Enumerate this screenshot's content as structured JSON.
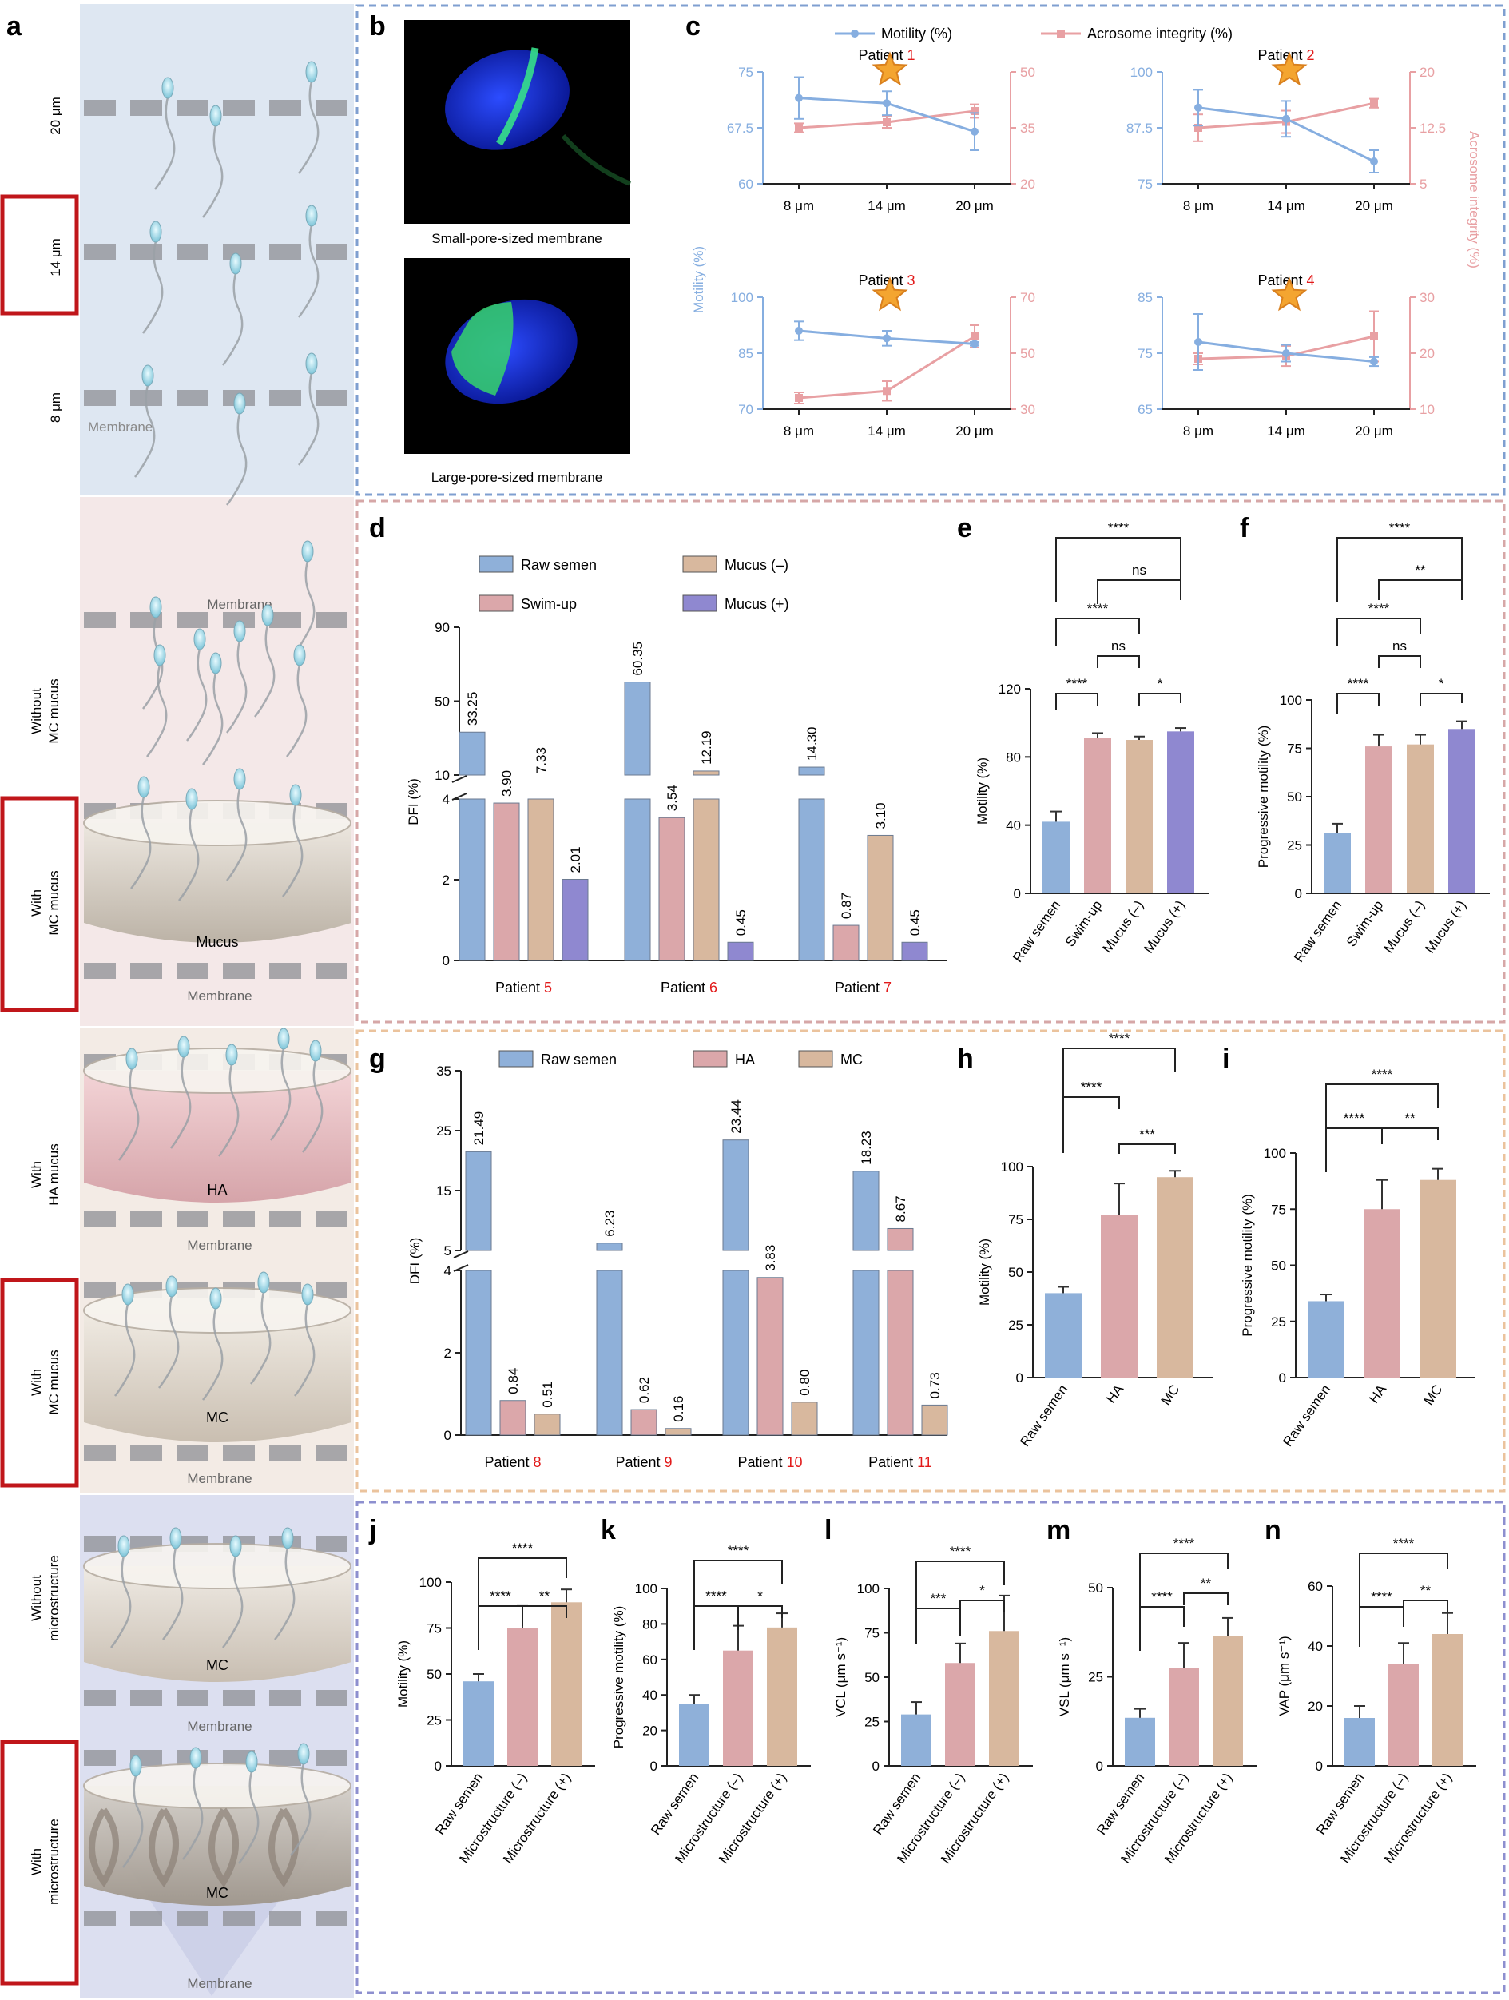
{
  "colors": {
    "blue": "#8fb0d9",
    "pink": "#dba7aa",
    "tan": "#d8b89e",
    "purple": "#8f88d0",
    "motility_line": "#86aee0",
    "acrosome_line": "#e8a0a3",
    "red": "#e21a1a",
    "bg_blue": "#dee7f2",
    "bg_pink": "#f4e8e8",
    "bg_peach": "#f3ebe5",
    "bg_lav": "#dcdff0",
    "frame_blue": "#7f9fd0",
    "frame_pink": "#d6a7a7",
    "frame_peach": "#ebc39d",
    "frame_lav": "#8d8fcf"
  },
  "panel_letters": [
    "a",
    "b",
    "c",
    "d",
    "e",
    "f",
    "g",
    "h",
    "i",
    "j",
    "k",
    "l",
    "m",
    "n"
  ],
  "panel_a": {
    "pore_labels": [
      "20 μm",
      "14 μm",
      "8 μm"
    ],
    "membrane_label": "Membrane",
    "side_labels": [
      "Without\nMC mucus",
      "With\nMC mucus",
      "With\nHA mucus",
      "With\nMC mucus",
      "Without\nmicrostructure",
      "With\nmicrostructure"
    ],
    "mucus_labels": [
      "Mucus",
      "HA",
      "MC",
      "MC",
      "MC"
    ],
    "membrane_labels": [
      "Membrane",
      "Membrane",
      "Membrane",
      "Membrane",
      "Membrane",
      "Membrane"
    ]
  },
  "panel_b": {
    "captions": [
      "Small-pore-sized membrane",
      "Large-pore-sized membrane"
    ]
  },
  "chart_data": [
    {
      "id": "c",
      "type": "line",
      "legend": [
        "Motility (%)",
        "Acrosome integrity (%)"
      ],
      "ylabel_left": "Motility (%)",
      "ylabel_right": "Acrosome integrity (%)",
      "categories": [
        "8 μm",
        "14 μm",
        "20 μm"
      ],
      "patients": [
        {
          "prefix": "Patient ",
          "num": "1",
          "left_ticks": [
            "60",
            "67.5",
            "75"
          ],
          "left_range": [
            60,
            75
          ],
          "right_ticks": [
            "20",
            "35",
            "50"
          ],
          "right_range": [
            20,
            50
          ],
          "motility": [
            71.5,
            70.8,
            67.0
          ],
          "motility_err": [
            2.8,
            1.6,
            2.5
          ],
          "acrosome": [
            35.0,
            36.5,
            39.5
          ],
          "acrosome_err": [
            1.2,
            1.5,
            1.8
          ]
        },
        {
          "prefix": "Patient ",
          "num": "2",
          "left_ticks": [
            "75",
            "87.5",
            "100"
          ],
          "left_range": [
            75,
            100
          ],
          "right_ticks": [
            "5",
            "12.5",
            "20"
          ],
          "right_range": [
            5,
            20
          ],
          "motility": [
            92.0,
            89.5,
            80.0
          ],
          "motility_err": [
            4.0,
            4.0,
            2.5
          ],
          "acrosome": [
            12.5,
            13.3,
            15.8
          ],
          "acrosome_err": [
            1.8,
            1.5,
            0.6
          ]
        },
        {
          "prefix": "Patient ",
          "num": "3",
          "left_ticks": [
            "70",
            "85",
            "100"
          ],
          "left_range": [
            70,
            100
          ],
          "right_ticks": [
            "30",
            "50",
            "70"
          ],
          "right_range": [
            30,
            70
          ],
          "motility": [
            91.0,
            89.0,
            87.5
          ],
          "motility_err": [
            2.5,
            2.0,
            0.5
          ],
          "acrosome": [
            34.0,
            36.5,
            56.0
          ],
          "acrosome_err": [
            2.0,
            3.5,
            4.0
          ]
        },
        {
          "prefix": "Patient ",
          "num": "4",
          "left_ticks": [
            "65",
            "75",
            "85"
          ],
          "left_range": [
            65,
            85
          ],
          "right_ticks": [
            "10",
            "20",
            "30"
          ],
          "right_range": [
            10,
            30
          ],
          "motility": [
            77.0,
            75.0,
            73.5
          ],
          "motility_err": [
            5.0,
            1.5,
            0.8
          ],
          "acrosome": [
            19.0,
            19.5,
            23.0
          ],
          "acrosome_err": [
            1.0,
            1.8,
            4.5
          ]
        }
      ]
    },
    {
      "id": "d",
      "type": "bar",
      "ylabel": "DFI (%)",
      "legend": [
        "Raw semen",
        "Swim-up",
        "Mucus (–)",
        "Mucus (+)"
      ],
      "upper_ticks": [
        "10",
        "50",
        "90"
      ],
      "lower_ticks": [
        "0",
        "2",
        "4"
      ],
      "groups": [
        {
          "prefix": "Patient ",
          "num": "5",
          "values": [
            33.25,
            3.9,
            7.33,
            2.01
          ],
          "labels": [
            "33.25",
            "3.90",
            "7.33",
            "2.01"
          ]
        },
        {
          "prefix": "Patient ",
          "num": "6",
          "values": [
            60.35,
            3.54,
            12.19,
            0.45
          ],
          "labels": [
            "60.35",
            "3.54",
            "12.19",
            "0.45"
          ]
        },
        {
          "prefix": "Patient ",
          "num": "7",
          "values": [
            14.3,
            0.87,
            3.1,
            0.45
          ],
          "labels": [
            "14.30",
            "0.87",
            "3.10",
            "0.45"
          ]
        }
      ]
    },
    {
      "id": "e",
      "type": "bar",
      "ylabel": "Motility (%)",
      "ylim": [
        0,
        120
      ],
      "ticks": [
        "0",
        "40",
        "80",
        "120"
      ],
      "categories": [
        "Raw semen",
        "Swim-up",
        "Mucus (–)",
        "Mucus (+)"
      ],
      "values": [
        42,
        91,
        90,
        95
      ],
      "errors": [
        6,
        3,
        2,
        2
      ],
      "sig": [
        {
          "a": 0,
          "b": 1,
          "label": "****"
        },
        {
          "a": 1,
          "b": 2,
          "label": "ns"
        },
        {
          "a": 2,
          "b": 3,
          "label": "*"
        },
        {
          "a": 0,
          "b": 2,
          "label": "****"
        },
        {
          "a": 1,
          "b": 3,
          "label": "ns"
        },
        {
          "a": 0,
          "b": 3,
          "label": "****"
        }
      ]
    },
    {
      "id": "f",
      "type": "bar",
      "ylabel": "Progressive motility (%)",
      "ylim": [
        0,
        100
      ],
      "ticks": [
        "0",
        "25",
        "50",
        "75",
        "100"
      ],
      "categories": [
        "Raw semen",
        "Swim-up",
        "Mucus (–)",
        "Mucus (+)"
      ],
      "values": [
        31,
        76,
        77,
        85
      ],
      "errors": [
        5,
        6,
        5,
        4
      ],
      "sig": [
        {
          "a": 0,
          "b": 1,
          "label": "****"
        },
        {
          "a": 1,
          "b": 2,
          "label": "ns"
        },
        {
          "a": 2,
          "b": 3,
          "label": "*"
        },
        {
          "a": 0,
          "b": 2,
          "label": "****"
        },
        {
          "a": 1,
          "b": 3,
          "label": "**"
        },
        {
          "a": 0,
          "b": 3,
          "label": "****"
        }
      ]
    },
    {
      "id": "g",
      "type": "bar",
      "ylabel": "DFI (%)",
      "legend": [
        "Raw semen",
        "HA",
        "MC"
      ],
      "upper_ticks": [
        "5",
        "15",
        "25",
        "35"
      ],
      "lower_ticks": [
        "0",
        "2",
        "4"
      ],
      "groups": [
        {
          "prefix": "Patient ",
          "num": "8",
          "values": [
            21.49,
            0.84,
            0.51
          ],
          "labels": [
            "21.49",
            "0.84",
            "0.51"
          ]
        },
        {
          "prefix": "Patient ",
          "num": "9",
          "values": [
            6.23,
            0.62,
            0.16
          ],
          "labels": [
            "6.23",
            "0.62",
            "0.16"
          ]
        },
        {
          "prefix": "Patient ",
          "num": "10",
          "values": [
            23.44,
            3.83,
            0.8
          ],
          "labels": [
            "23.44",
            "3.83",
            "0.80"
          ]
        },
        {
          "prefix": "Patient ",
          "num": "11",
          "values": [
            18.23,
            8.67,
            0.73
          ],
          "labels": [
            "18.23",
            "8.67",
            "0.73"
          ]
        }
      ]
    },
    {
      "id": "h",
      "type": "bar",
      "ylabel": "Motility (%)",
      "ylim": [
        0,
        100
      ],
      "ticks": [
        "0",
        "25",
        "50",
        "75",
        "100"
      ],
      "categories": [
        "Raw semen",
        "HA",
        "MC"
      ],
      "values": [
        40,
        77,
        95
      ],
      "errors": [
        3,
        15,
        3
      ],
      "sig": [
        {
          "a": 0,
          "b": 1,
          "label": "****"
        },
        {
          "a": 1,
          "b": 2,
          "label": "***"
        },
        {
          "a": 0,
          "b": 2,
          "label": "****"
        }
      ]
    },
    {
      "id": "i",
      "type": "bar",
      "ylabel": "Progressive motility (%)",
      "ylim": [
        0,
        100
      ],
      "ticks": [
        "0",
        "25",
        "50",
        "75",
        "100"
      ],
      "categories": [
        "Raw semen",
        "HA",
        "MC"
      ],
      "values": [
        34,
        75,
        88
      ],
      "errors": [
        3,
        13,
        5
      ],
      "sig": [
        {
          "a": 0,
          "b": 1,
          "label": "****"
        },
        {
          "a": 1,
          "b": 2,
          "label": "**"
        },
        {
          "a": 0,
          "b": 2,
          "label": "****"
        }
      ]
    },
    {
      "id": "j",
      "type": "bar",
      "ylabel": "Motility (%)",
      "ylim": [
        0,
        100
      ],
      "ticks": [
        "0",
        "25",
        "50",
        "75",
        "100"
      ],
      "categories": [
        "Raw semen",
        "Microstructure (–)",
        "Microstructure (+)"
      ],
      "values": [
        46,
        75,
        89
      ],
      "errors": [
        4,
        12,
        7
      ],
      "sig": [
        {
          "a": 0,
          "b": 1,
          "label": "****"
        },
        {
          "a": 1,
          "b": 2,
          "label": "**"
        },
        {
          "a": 0,
          "b": 2,
          "label": "****"
        }
      ]
    },
    {
      "id": "k",
      "type": "bar",
      "ylabel": "Progressive motility (%)",
      "ylim": [
        0,
        100
      ],
      "ticks": [
        "0",
        "20",
        "40",
        "60",
        "80",
        "100"
      ],
      "categories": [
        "Raw semen",
        "Microstructure (–)",
        "Microstructure (+)"
      ],
      "values": [
        35,
        65,
        78
      ],
      "errors": [
        5,
        14,
        8
      ],
      "sig": [
        {
          "a": 0,
          "b": 1,
          "label": "****"
        },
        {
          "a": 1,
          "b": 2,
          "label": "*"
        },
        {
          "a": 0,
          "b": 2,
          "label": "****"
        }
      ]
    },
    {
      "id": "l",
      "type": "bar",
      "ylabel": "VCL (μm s⁻¹)",
      "ylim": [
        0,
        100
      ],
      "ticks": [
        "0",
        "25",
        "50",
        "75",
        "100"
      ],
      "categories": [
        "Raw semen",
        "Microstructure (–)",
        "Microstructure (+)"
      ],
      "values": [
        29,
        58,
        76
      ],
      "errors": [
        7,
        11,
        20
      ],
      "sig": [
        {
          "a": 0,
          "b": 1,
          "label": "***"
        },
        {
          "a": 1,
          "b": 2,
          "label": "*"
        },
        {
          "a": 0,
          "b": 2,
          "label": "****"
        }
      ]
    },
    {
      "id": "m",
      "type": "bar",
      "ylabel": "VSL (μm s⁻¹)",
      "ylim": [
        0,
        50
      ],
      "ticks": [
        "0",
        "25",
        "50"
      ],
      "categories": [
        "Raw semen",
        "Microstructure (–)",
        "Microstructure (+)"
      ],
      "values": [
        13.5,
        27.5,
        36.5
      ],
      "errors": [
        2.5,
        7,
        5
      ],
      "sig": [
        {
          "a": 0,
          "b": 1,
          "label": "****"
        },
        {
          "a": 1,
          "b": 2,
          "label": "**"
        },
        {
          "a": 0,
          "b": 2,
          "label": "****"
        }
      ]
    },
    {
      "id": "n",
      "type": "bar",
      "ylabel": "VAP (μm s⁻¹)",
      "ylim": [
        0,
        60
      ],
      "ticks": [
        "0",
        "20",
        "40",
        "60"
      ],
      "categories": [
        "Raw semen",
        "Microstructure (–)",
        "Microstructure (+)"
      ],
      "values": [
        16,
        34,
        44
      ],
      "errors": [
        4,
        7,
        7
      ],
      "sig": [
        {
          "a": 0,
          "b": 1,
          "label": "****"
        },
        {
          "a": 1,
          "b": 2,
          "label": "**"
        },
        {
          "a": 0,
          "b": 2,
          "label": "****"
        }
      ]
    }
  ]
}
